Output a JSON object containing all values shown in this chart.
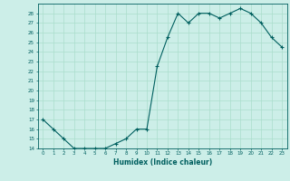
{
  "x": [
    0,
    1,
    2,
    3,
    4,
    5,
    6,
    7,
    8,
    9,
    10,
    11,
    12,
    13,
    14,
    15,
    16,
    17,
    18,
    19,
    20,
    21,
    22,
    23
  ],
  "y": [
    17.0,
    16.0,
    15.0,
    14.0,
    14.0,
    14.0,
    14.0,
    14.5,
    15.0,
    16.0,
    16.0,
    22.5,
    25.5,
    28.0,
    27.0,
    28.0,
    28.0,
    27.5,
    28.0,
    28.5,
    28.0,
    27.0,
    25.5,
    24.5
  ],
  "xlabel": "Humidex (Indice chaleur)",
  "ylim": [
    14,
    29
  ],
  "xlim": [
    -0.5,
    23.5
  ],
  "yticks": [
    14,
    15,
    16,
    17,
    18,
    19,
    20,
    21,
    22,
    23,
    24,
    25,
    26,
    27,
    28
  ],
  "xticks": [
    0,
    1,
    2,
    3,
    4,
    5,
    6,
    7,
    8,
    9,
    10,
    11,
    12,
    13,
    14,
    15,
    16,
    17,
    18,
    19,
    20,
    21,
    22,
    23
  ],
  "line_color": "#005f5f",
  "bg_color": "#cceee8",
  "grid_color": "#aaddcc",
  "marker": "+"
}
